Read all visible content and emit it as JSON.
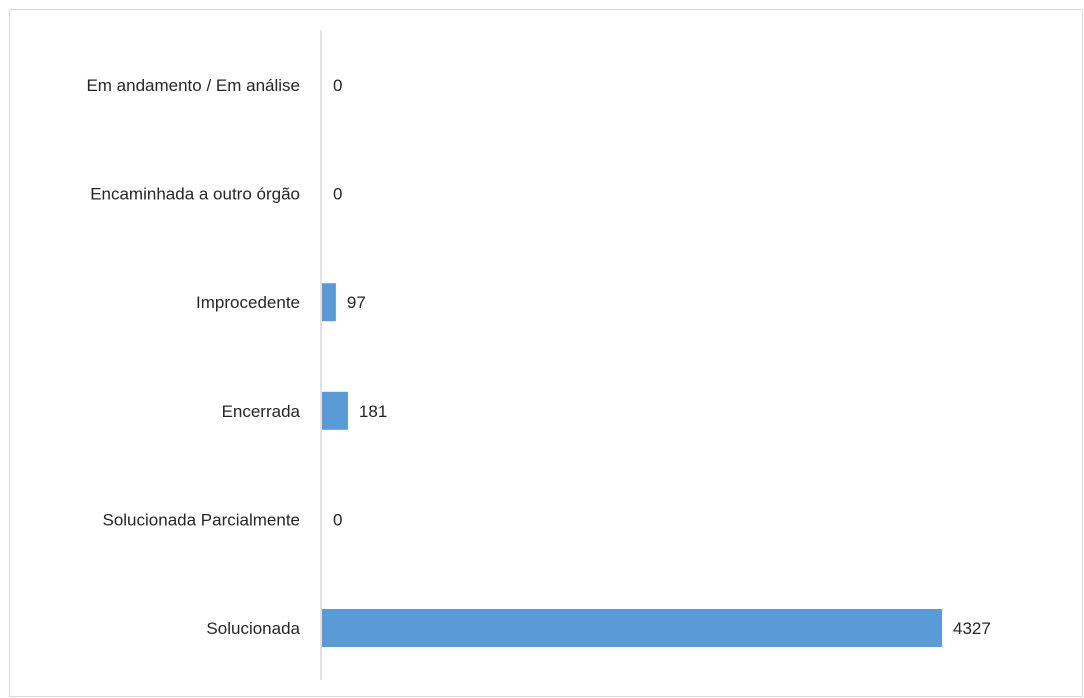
{
  "chart_data": {
    "type": "bar",
    "orientation": "horizontal",
    "categories": [
      "Em andamento / Em análise",
      "Encaminhada a outro órgão",
      "Improcedente",
      "Encerrada",
      "Solucionada Parcialmente",
      "Solucionada"
    ],
    "values": [
      0,
      0,
      97,
      181,
      0,
      4327
    ],
    "title": "",
    "xlabel": "",
    "ylabel": "",
    "xlim": [
      0,
      4327
    ],
    "grid": false,
    "legend": "none",
    "data_labels": true,
    "bar_color": "#5b9bd5",
    "axis_color": "#d9d9d9",
    "text_color": "#262626"
  }
}
